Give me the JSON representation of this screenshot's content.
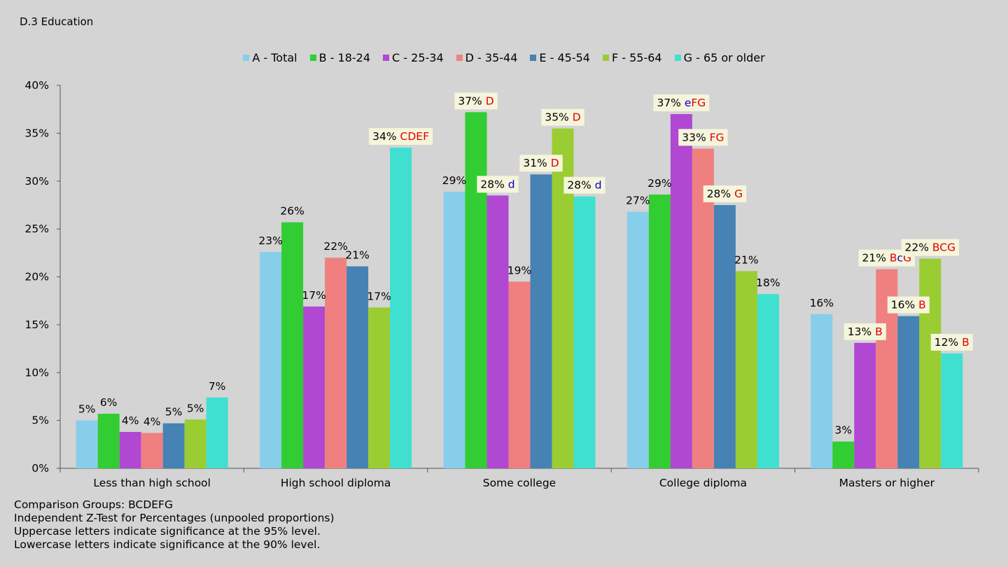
{
  "chart_data": {
    "type": "bar",
    "title": "D.3  Education",
    "categories": [
      "Less than high school",
      "High school diploma",
      "Some college",
      "College diploma",
      "Masters or higher"
    ],
    "ylim": [
      0,
      40
    ],
    "yticks": [
      "0%",
      "5%",
      "10%",
      "15%",
      "20%",
      "25%",
      "30%",
      "35%",
      "40%"
    ],
    "legend_position": "top-center",
    "grid": false,
    "series": [
      {
        "name": "A - Total",
        "color": "#87ceeb",
        "values": [
          5.0,
          22.6,
          28.9,
          26.8,
          16.1
        ],
        "labels": [
          "5%",
          "23%",
          "29%",
          "27%",
          "16%"
        ],
        "sig": [
          [],
          [],
          [],
          [],
          []
        ]
      },
      {
        "name": "B - 18-24",
        "color": "#32cd32",
        "values": [
          5.7,
          25.7,
          37.2,
          28.6,
          2.8
        ],
        "labels": [
          "6%",
          "26%",
          "37%",
          "29%",
          "3%"
        ],
        "sig": [
          [],
          [],
          [
            {
              "text": "D",
              "level": "95"
            }
          ],
          [],
          []
        ]
      },
      {
        "name": "C - 25-34",
        "color": "#b048d2",
        "values": [
          3.8,
          16.9,
          28.5,
          37.0,
          13.1
        ],
        "labels": [
          "4%",
          "17%",
          "28%",
          "37%",
          "13%"
        ],
        "sig": [
          [],
          [],
          [
            {
              "text": "d",
              "level": "90"
            }
          ],
          [
            {
              "text": "e",
              "level": "90"
            },
            {
              "text": "FG",
              "level": "95"
            }
          ],
          [
            {
              "text": "B",
              "level": "95"
            }
          ]
        ]
      },
      {
        "name": "D - 35-44",
        "color": "#f08080",
        "values": [
          3.7,
          22.0,
          19.5,
          33.4,
          20.8
        ],
        "labels": [
          "4%",
          "22%",
          "19%",
          "33%",
          "21%"
        ],
        "sig": [
          [],
          [],
          [],
          [
            {
              "text": "FG",
              "level": "95"
            }
          ],
          [
            {
              "text": "B",
              "level": "95"
            },
            {
              "text": "c",
              "level": "90"
            },
            {
              "text": "G",
              "level": "95"
            }
          ]
        ]
      },
      {
        "name": "E - 45-54",
        "color": "#4682b4",
        "values": [
          4.7,
          21.1,
          30.7,
          27.5,
          15.9
        ],
        "labels": [
          "5%",
          "21%",
          "31%",
          "28%",
          "16%"
        ],
        "sig": [
          [],
          [],
          [
            {
              "text": "D",
              "level": "95"
            }
          ],
          [
            {
              "text": "G",
              "level": "95"
            }
          ],
          [
            {
              "text": "B",
              "level": "95"
            }
          ]
        ]
      },
      {
        "name": "F - 55-64",
        "color": "#9acd32",
        "values": [
          5.1,
          16.8,
          35.5,
          20.6,
          21.9
        ],
        "labels": [
          "5%",
          "17%",
          "35%",
          "21%",
          "22%"
        ],
        "sig": [
          [],
          [],
          [
            {
              "text": "D",
              "level": "95"
            }
          ],
          [],
          [
            {
              "text": "BCG",
              "level": "95"
            }
          ]
        ]
      },
      {
        "name": "G - 65 or older",
        "color": "#40e0d0",
        "values": [
          7.4,
          33.5,
          28.4,
          18.2,
          12.0
        ],
        "labels": [
          "7%",
          "34%",
          "28%",
          "18%",
          "12%"
        ],
        "sig": [
          [],
          [
            {
              "text": "CDEF",
              "level": "95"
            }
          ],
          [
            {
              "text": "d",
              "level": "90"
            }
          ],
          [],
          [
            {
              "text": "B",
              "level": "95"
            }
          ]
        ]
      }
    ],
    "sig_colors": {
      "95": "#e00000",
      "90": "#0000cc"
    },
    "label_box_color": "#f5f5dc"
  },
  "notes": [
    "Comparison Groups: BCDEFG",
    "Independent Z-Test for Percentages (unpooled proportions)",
    "Uppercase letters indicate significance at the 95% level.",
    "Lowercase letters indicate significance at the 90% level."
  ]
}
